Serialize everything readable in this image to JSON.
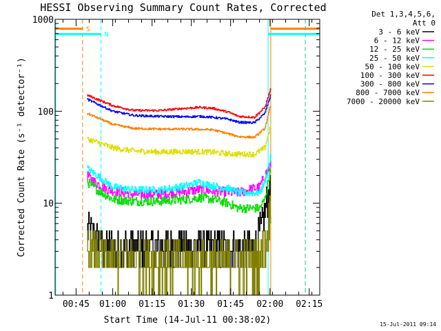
{
  "chart_data": {
    "type": "line",
    "title": "HESSI Observing Summary Count Rates, Corrected",
    "xlabel": "Start Time (14-Jul-11 00:38:02)",
    "ylabel": "Corrected Count Rate (s⁻¹ detector⁻¹)",
    "footer": "15-Jul-2011 09:14",
    "x_unit": "minutes after 00:38:02",
    "xlim": [
      0,
      101
    ],
    "ylim": [
      1,
      1000
    ],
    "yscale": "log",
    "x_ticks": [
      {
        "t": 8,
        "label": "00:45"
      },
      {
        "t": 22,
        "label": "01:00"
      },
      {
        "t": 37,
        "label": "01:15"
      },
      {
        "t": 52,
        "label": "01:30"
      },
      {
        "t": 67,
        "label": "01:45"
      },
      {
        "t": 82,
        "label": "02:00"
      },
      {
        "t": 97,
        "label": "02:15"
      }
    ],
    "y_ticks": [
      {
        "v": 1,
        "label": "1"
      },
      {
        "v": 10,
        "label": "10"
      },
      {
        "v": 100,
        "label": "100"
      },
      {
        "v": 1000,
        "label": "1000"
      }
    ],
    "legend": {
      "header_line1": "Det 1,3,4,5,6,",
      "header_line2": "Att 0",
      "entries": [
        {
          "label": "3 - 6 keV",
          "color": "#000000"
        },
        {
          "label": "6 - 12 keV",
          "color": "#ff00ff"
        },
        {
          "label": "12 - 25 keV",
          "color": "#00dd00"
        },
        {
          "label": "25 - 50 keV",
          "color": "#00ffff"
        },
        {
          "label": "50 - 100 keV",
          "color": "#dddd00"
        },
        {
          "label": "100 - 300 keV",
          "color": "#ff0000"
        },
        {
          "label": "300 - 800 keV",
          "color": "#0000ff"
        },
        {
          "label": "800 - 7000 keV",
          "color": "#ff7f00"
        },
        {
          "label": "7000 - 20000 keV",
          "color": "#808000"
        }
      ]
    },
    "markers": [
      {
        "label": "S",
        "t_start": 10.5,
        "t_end": 95.5,
        "color": "#ff7f00",
        "bar_segments": [
          [
            0,
            10.5
          ],
          [
            82.3,
            101
          ]
        ],
        "bar_level": 0.034
      },
      {
        "label": "N",
        "t_start": 17.5,
        "t_end": 81.3,
        "color": "#00ffff",
        "bar_segments": [
          [
            0,
            17.5
          ],
          [
            81.3,
            101
          ]
        ],
        "bar_level": 0.053
      }
    ],
    "vertical_lines": [
      {
        "t": 0.2,
        "color": "#00ffff",
        "dash": false
      },
      {
        "t": 10.5,
        "color": "#ff7f00",
        "dash": true
      },
      {
        "t": 17.5,
        "color": "#00ffff",
        "dash": true
      },
      {
        "t": 81.3,
        "color": "#00ffff",
        "dash": false
      },
      {
        "t": 82.3,
        "color": "#ff7f00",
        "dash": false
      },
      {
        "t": 95.5,
        "color": "#ff7f00",
        "dash": true
      },
      {
        "t": 95.6,
        "color": "#00ffff",
        "dash": true
      }
    ],
    "data_window": [
      12.2,
      82.3
    ],
    "series": [
      {
        "name": "3 - 6 keV",
        "color": "#000000",
        "noise": 0.22,
        "knots": [
          [
            12.2,
            5.0
          ],
          [
            15,
            4.2
          ],
          [
            18,
            3.2
          ],
          [
            25,
            3.2
          ],
          [
            40,
            3.2
          ],
          [
            55,
            3.4
          ],
          [
            70,
            3.1
          ],
          [
            76,
            3.0
          ],
          [
            79,
            5.5
          ],
          [
            81.3,
            12
          ]
        ]
      },
      {
        "name": "6 - 12 keV",
        "color": "#ff00ff",
        "noise": 0.055,
        "knots": [
          [
            12.2,
            20
          ],
          [
            15,
            17
          ],
          [
            20,
            14
          ],
          [
            30,
            12.5
          ],
          [
            40,
            12.5
          ],
          [
            50,
            13.5
          ],
          [
            55,
            14
          ],
          [
            60,
            13.5
          ],
          [
            70,
            13
          ],
          [
            78,
            15
          ],
          [
            80,
            20
          ],
          [
            82.2,
            26
          ]
        ]
      },
      {
        "name": "12 - 25 keV",
        "color": "#00dd00",
        "noise": 0.05,
        "knots": [
          [
            12.2,
            17
          ],
          [
            16,
            14
          ],
          [
            22,
            11
          ],
          [
            30,
            10.5
          ],
          [
            40,
            10.5
          ],
          [
            50,
            11
          ],
          [
            55,
            11.5
          ],
          [
            60,
            11
          ],
          [
            66,
            10
          ],
          [
            70,
            8.8
          ],
          [
            78,
            8.8
          ],
          [
            80,
            11
          ],
          [
            82.2,
            24
          ]
        ]
      },
      {
        "name": "25 - 50 keV",
        "color": "#00ffff",
        "noise": 0.04,
        "knots": [
          [
            12.2,
            24
          ],
          [
            16,
            20
          ],
          [
            22,
            15
          ],
          [
            30,
            14
          ],
          [
            40,
            14
          ],
          [
            50,
            15.5
          ],
          [
            55,
            17
          ],
          [
            60,
            15.5
          ],
          [
            66,
            14.5
          ],
          [
            70,
            13
          ],
          [
            78,
            13
          ],
          [
            80,
            17
          ],
          [
            82.2,
            32
          ]
        ]
      },
      {
        "name": "50 - 100 keV",
        "color": "#dddd00",
        "noise": 0.03,
        "knots": [
          [
            12.2,
            50
          ],
          [
            16,
            46
          ],
          [
            22,
            40
          ],
          [
            30,
            37
          ],
          [
            40,
            36
          ],
          [
            50,
            36.5
          ],
          [
            60,
            36
          ],
          [
            66,
            34.5
          ],
          [
            76,
            34
          ],
          [
            80,
            40
          ],
          [
            82.2,
            70
          ]
        ]
      },
      {
        "name": "100 - 300 keV",
        "color": "#ff0000",
        "noise": 0.012,
        "knots": [
          [
            12.2,
            150
          ],
          [
            16,
            135
          ],
          [
            22,
            115
          ],
          [
            30,
            102
          ],
          [
            40,
            102
          ],
          [
            50,
            108
          ],
          [
            55,
            110
          ],
          [
            60,
            108
          ],
          [
            66,
            98
          ],
          [
            70,
            88
          ],
          [
            76,
            86
          ],
          [
            80,
            110
          ],
          [
            82.2,
            175
          ]
        ]
      },
      {
        "name": "300 - 800 keV",
        "color": "#0000ff",
        "noise": 0.012,
        "knots": [
          [
            12.2,
            135
          ],
          [
            16,
            120
          ],
          [
            22,
            100
          ],
          [
            30,
            90
          ],
          [
            40,
            88
          ],
          [
            50,
            87
          ],
          [
            55,
            88
          ],
          [
            60,
            86
          ],
          [
            66,
            82
          ],
          [
            70,
            76
          ],
          [
            76,
            75
          ],
          [
            80,
            95
          ],
          [
            82.2,
            150
          ]
        ]
      },
      {
        "name": "800 - 7000 keV",
        "color": "#ff7f00",
        "noise": 0.012,
        "knots": [
          [
            12.2,
            95
          ],
          [
            16,
            85
          ],
          [
            22,
            72
          ],
          [
            30,
            65
          ],
          [
            40,
            64
          ],
          [
            50,
            64
          ],
          [
            60,
            63
          ],
          [
            66,
            57
          ],
          [
            70,
            53
          ],
          [
            76,
            52
          ],
          [
            80,
            65
          ],
          [
            82.2,
            115
          ]
        ]
      },
      {
        "name": "7000 - 20000 keV",
        "color": "#808000",
        "noise": 0.25,
        "knots": [
          [
            12.2,
            3.0
          ],
          [
            22,
            2.4
          ],
          [
            40,
            2.3
          ],
          [
            60,
            2.3
          ],
          [
            76,
            2.2
          ],
          [
            80,
            3.0
          ],
          [
            82.3,
            9.5
          ]
        ]
      }
    ]
  }
}
